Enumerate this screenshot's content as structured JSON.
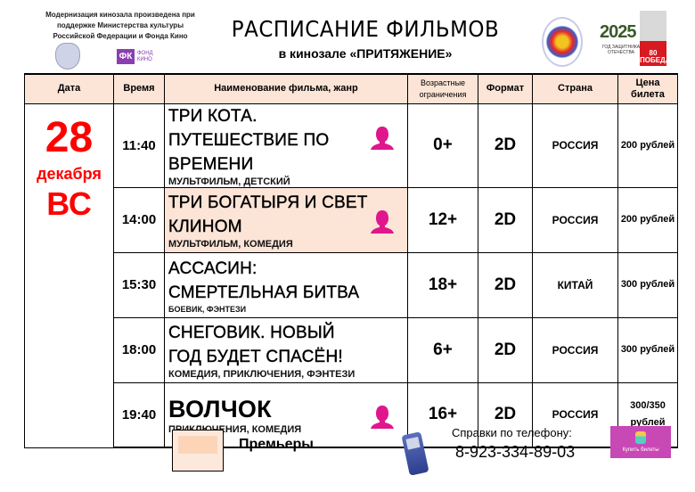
{
  "header": {
    "note": "Модернизация кинозала произведена при поддержке Министерства культуры Российской Федерации и Фонда Кино",
    "title": "РАСПИСАНИЕ ФИЛЬМОВ",
    "subtitle": "в кинозале «ПРИТЯЖЕНИЕ»",
    "fk_logo": "ФК",
    "fk_caption": "ФОНД КИНО",
    "year_logo": "2025",
    "year_caption": "ГОД ЗАЩИТНИКА ОТЕЧЕСТВА",
    "victory_logo": "80 ПОБЕДА!"
  },
  "columns": [
    "Дата",
    "Время",
    "Наименование фильма, жанр",
    "Возрастные ограничения",
    "Формат",
    "Страна",
    "Цена билета"
  ],
  "date": {
    "day": "28",
    "month": "декабря",
    "weekday": "ВС"
  },
  "rows": [
    {
      "time": "11:40",
      "title": "ТРИ КОТА. ПУТЕШЕСТВИЕ ПО ВРЕМЕНИ",
      "genre": "МУЛЬТФИЛЬМ, ДЕТСКИЙ",
      "age": "0+",
      "format": "2D",
      "country": "РОССИЯ",
      "price": "200 рублей",
      "premiere": false,
      "pushkin_card": true
    },
    {
      "time": "14:00",
      "title": "ТРИ БОГАТЫРЯ И СВЕТ КЛИНОМ",
      "genre": "МУЛЬТФИЛЬМ, КОМЕДИЯ",
      "age": "12+",
      "format": "2D",
      "country": "РОССИЯ",
      "price": "200 рублей",
      "premiere": true,
      "pushkin_card": true
    },
    {
      "time": "15:30",
      "title": "АССАСИН: СМЕРТЕЛЬНАЯ БИТВА",
      "genre": "БОЕВИК, ФЭНТЕЗИ",
      "age": "18+",
      "format": "2D",
      "country": "КИТАЙ",
      "price": "300 рублей",
      "premiere": false,
      "pushkin_card": false
    },
    {
      "time": "18:00",
      "title": "СНЕГОВИК. НОВЫЙ ГОД БУДЕТ СПАСЁН!",
      "genre": "КОМЕДИЯ, ПРИКЛЮЧЕНИЯ, ФЭНТЕЗИ",
      "age": "6+",
      "format": "2D",
      "country": "РОССИЯ",
      "price": "300 рублей",
      "premiere": false,
      "pushkin_card": false
    },
    {
      "time": "19:40",
      "title": "ВОЛЧОК",
      "genre": "ПРИКЛЮЧЕНИЯ, КОМЕДИЯ",
      "age": "16+",
      "format": "2D",
      "country": "РОССИЯ",
      "price": "300/350 рублей",
      "premiere": false,
      "pushkin_card": true
    }
  ],
  "footer": {
    "legend_label": "Премьеры",
    "help_label": "Справки по телефону:",
    "phone": "8-923-334-89-03",
    "buy_button": "Купить билеты"
  },
  "colors": {
    "header_bg": "#fce4d6",
    "premiere_bg": "#fce4d6",
    "date_red": "#ff0000",
    "pushkin_pink": "#e0168c"
  }
}
